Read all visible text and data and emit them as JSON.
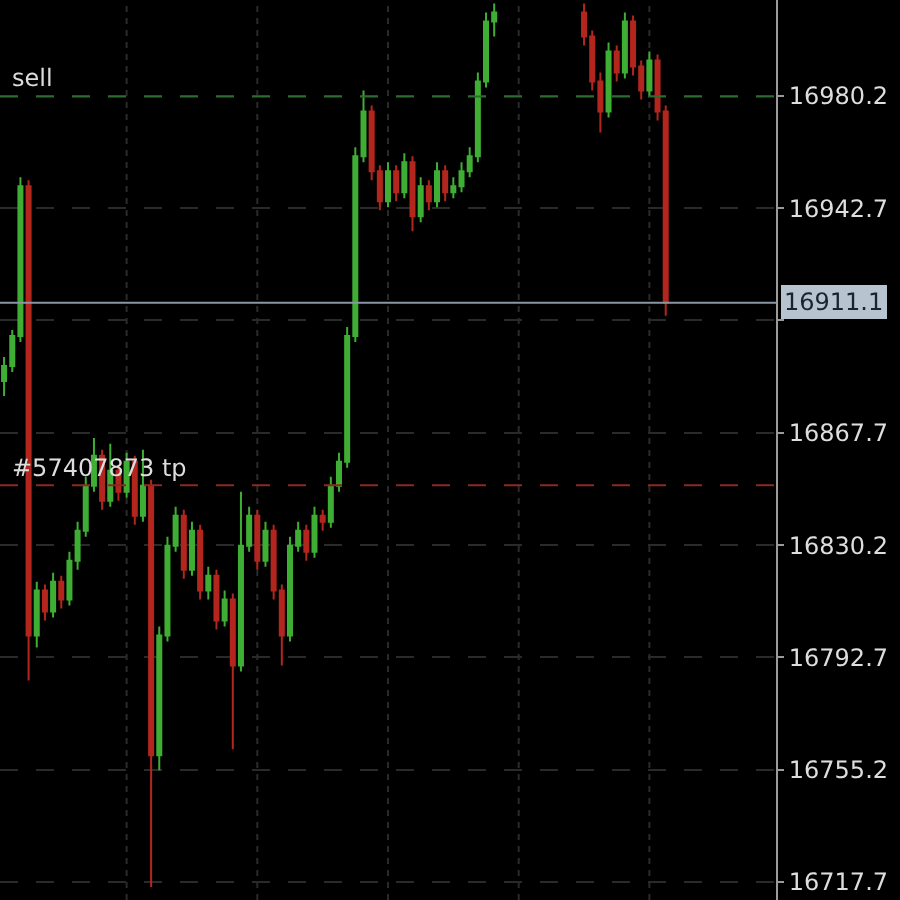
{
  "chart_data": {
    "type": "candlestick",
    "categories": [
      null,
      null,
      null,
      null,
      null,
      null,
      null,
      null,
      null,
      null,
      null,
      null,
      null,
      null,
      null,
      null,
      null,
      null,
      null,
      null,
      null,
      null,
      null,
      null,
      null,
      null,
      null,
      null,
      null,
      null,
      null,
      null,
      null,
      null,
      null,
      null,
      null,
      null,
      null,
      null,
      null,
      null,
      null,
      null,
      null,
      null,
      null,
      null,
      null,
      null,
      null,
      null,
      null,
      null,
      null,
      null,
      null,
      null,
      null,
      null,
      null,
      null,
      null,
      null,
      null,
      null,
      null,
      null,
      null,
      null,
      null,
      null,
      null,
      null,
      null,
      null,
      null,
      null,
      null,
      null,
      null,
      null,
      null,
      null,
      null,
      null,
      null,
      null,
      null,
      null,
      null,
      null,
      null,
      null,
      null
    ],
    "ohlc": [
      [
        16885,
        16893,
        16880,
        16890
      ],
      [
        16890,
        16902,
        16888,
        16900
      ],
      [
        16900,
        16953,
        16898,
        16950
      ],
      [
        16950,
        16952,
        16785,
        16800
      ],
      [
        16800,
        16818,
        16796,
        16815
      ],
      [
        16815,
        16817,
        16805,
        16808
      ],
      [
        16808,
        16821,
        16806,
        16818
      ],
      [
        16818,
        16820,
        16809,
        16812
      ],
      [
        16812,
        16828,
        16810,
        16825
      ],
      [
        16825,
        16838,
        16822,
        16835
      ],
      [
        16835,
        16853,
        16833,
        16850
      ],
      [
        16850,
        16866,
        16848,
        16860
      ],
      [
        16860,
        16862,
        16842,
        16845
      ],
      [
        16845,
        16864,
        16843,
        16855
      ],
      [
        16855,
        16857,
        16845,
        16848
      ],
      [
        16848,
        16861,
        16846,
        16858
      ],
      [
        16858,
        16860,
        16837,
        16840
      ],
      [
        16840,
        16862,
        16838,
        16850
      ],
      [
        16850,
        16852,
        16716,
        16760
      ],
      [
        16760,
        16803,
        16755,
        16800
      ],
      [
        16800,
        16833,
        16798,
        16830
      ],
      [
        16830,
        16843,
        16828,
        16840
      ],
      [
        16840,
        16842,
        16819,
        16822
      ],
      [
        16822,
        16838,
        16820,
        16835
      ],
      [
        16835,
        16837,
        16812,
        16815
      ],
      [
        16815,
        16823,
        16812,
        16820
      ],
      [
        16820,
        16822,
        16802,
        16805
      ],
      [
        16805,
        16815,
        16803,
        16812
      ],
      [
        16812,
        16814,
        16762,
        16790
      ],
      [
        16790,
        16848,
        16788,
        16830
      ],
      [
        16830,
        16843,
        16828,
        16840
      ],
      [
        16840,
        16842,
        16822,
        16825
      ],
      [
        16825,
        16838,
        16823,
        16835
      ],
      [
        16835,
        16837,
        16812,
        16815
      ],
      [
        16815,
        16817,
        16790,
        16800
      ],
      [
        16800,
        16833,
        16798,
        16830
      ],
      [
        16830,
        16838,
        16828,
        16835
      ],
      [
        16835,
        16837,
        16825,
        16828
      ],
      [
        16828,
        16843,
        16826,
        16840
      ],
      [
        16840,
        16842,
        16835,
        16838
      ],
      [
        16838,
        16853,
        16836,
        16850
      ],
      [
        16850,
        16861,
        16848,
        16858
      ],
      [
        16858,
        16903,
        16856,
        16900
      ],
      [
        16900,
        16963,
        16898,
        16960
      ],
      [
        16960,
        16982,
        16958,
        16975
      ],
      [
        16975,
        16977,
        16952,
        16955
      ],
      [
        16955,
        16957,
        16942,
        16945
      ],
      [
        16945,
        16958,
        16943,
        16955
      ],
      [
        16955,
        16957,
        16945,
        16948
      ],
      [
        16948,
        16961,
        16946,
        16958
      ],
      [
        16958,
        16960,
        16935,
        16940
      ],
      [
        16940,
        16953,
        16938,
        16950
      ],
      [
        16950,
        16952,
        16942,
        16945
      ],
      [
        16945,
        16958,
        16943,
        16955
      ],
      [
        16955,
        16957,
        16945,
        16948
      ],
      [
        16948,
        16953,
        16946,
        16950
      ],
      [
        16950,
        16958,
        16948,
        16955
      ],
      [
        16955,
        16963,
        16953,
        16960
      ],
      [
        16960,
        16988,
        16958,
        16985
      ],
      [
        16985,
        17008,
        16983,
        17005
      ],
      [
        17005,
        17011,
        17000,
        17008
      ],
      null,
      null,
      null,
      null,
      null,
      null,
      null,
      null,
      null,
      null,
      [
        17008,
        17011,
        16997,
        17000
      ],
      [
        17000,
        17002,
        16982,
        16985
      ],
      [
        16985,
        16988,
        16968,
        16975
      ],
      [
        16975,
        16998,
        16973,
        16995
      ],
      [
        16995,
        16997,
        16985,
        16988
      ],
      [
        16988,
        17008,
        16986,
        17005
      ],
      [
        17005,
        17007,
        16987,
        16990
      ],
      [
        16990,
        16992,
        16979,
        16982
      ],
      [
        16982,
        16995,
        16980,
        16992
      ],
      [
        16992,
        16994,
        16972,
        16975
      ],
      [
        16975,
        16977,
        16906.8,
        16911.1
      ],
      null,
      null,
      null,
      null,
      null,
      null,
      null,
      null,
      null,
      null,
      null,
      null,
      null
    ],
    "colors": [
      "#3fae34",
      "#3fae34",
      "#3fae34",
      "#b3261e",
      "#3fae34",
      "#b3261e",
      "#3fae34",
      "#b3261e",
      "#3fae34",
      "#3fae34",
      "#3fae34",
      "#3fae34",
      "#b3261e",
      "#3fae34",
      "#b3261e",
      "#3fae34",
      "#b3261e",
      "#3fae34",
      "#b3261e",
      "#3fae34",
      "#3fae34",
      "#3fae34",
      "#b3261e",
      "#3fae34",
      "#b3261e",
      "#3fae34",
      "#b3261e",
      "#3fae34",
      "#b3261e",
      "#3fae34",
      "#3fae34",
      "#b3261e",
      "#3fae34",
      "#b3261e",
      "#b3261e",
      "#3fae34",
      "#3fae34",
      "#b3261e",
      "#3fae34",
      "#b3261e",
      "#3fae34",
      "#3fae34",
      "#3fae34",
      "#3fae34",
      "#3fae34",
      "#b3261e",
      "#b3261e",
      "#3fae34",
      "#b3261e",
      "#3fae34",
      "#b3261e",
      "#3fae34",
      "#b3261e",
      "#3fae34",
      "#b3261e",
      "#3fae34",
      "#3fae34",
      "#3fae34",
      "#3fae34",
      "#3fae34",
      "#3fae34",
      null,
      null,
      null,
      null,
      null,
      null,
      null,
      null,
      null,
      null,
      "#b3261e",
      "#b3261e",
      "#b3261e",
      "#3fae34",
      "#b3261e",
      "#3fae34",
      "#b3261e",
      "#b3261e",
      "#3fae34",
      "#b3261e",
      "#b3261e",
      null,
      null,
      null,
      null,
      null,
      null,
      null,
      null,
      null,
      null,
      null,
      null,
      null
    ],
    "ylim": [
      16711.7,
      17012.2
    ],
    "yticks": [
      16717.7,
      16755.2,
      16792.7,
      16830.2,
      16867.7,
      {
        "value": 16905.2,
        "label": null
      },
      16942.7,
      16980.2
    ],
    "grid": true,
    "ref_lines": [
      {
        "axis": "y",
        "value": 16980,
        "label": "sell",
        "color": "#2e6b2e",
        "line_style": "dashed"
      },
      {
        "axis": "y",
        "value": 16850.2,
        "label": "#57407873 tp",
        "color": "#8a2a22",
        "line_style": "dashed"
      },
      {
        "axis": "y",
        "value": 16911.1,
        "label": "16911.1",
        "color": "#8a97a3",
        "line_style": "solid"
      }
    ]
  }
}
